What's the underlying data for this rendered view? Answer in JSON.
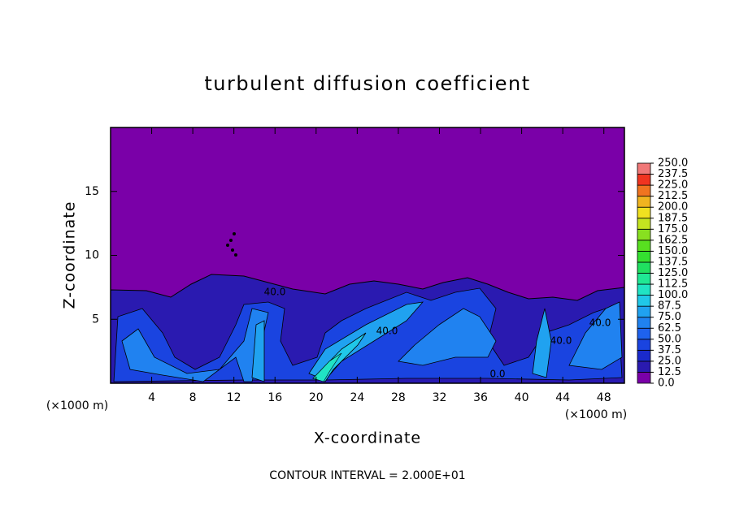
{
  "chart_data": {
    "type": "contour",
    "title": "turbulent diffusion coefficient",
    "xlabel": "X-coordinate",
    "ylabel": "Z-coordinate",
    "x_unit": "(×1000 m)",
    "y_unit": "(×1000 m)",
    "note": "CONTOUR INTERVAL = 2.000E+01",
    "xlim": [
      0,
      50
    ],
    "ylim": [
      0,
      20
    ],
    "xticks": [
      4,
      8,
      12,
      16,
      20,
      24,
      28,
      32,
      36,
      40,
      44,
      48
    ],
    "yticks": [
      5,
      10,
      15
    ],
    "levels": [
      {
        "value": 0,
        "label": "0.0"
      },
      {
        "value": 12.5,
        "label": "12.5"
      },
      {
        "value": 25,
        "label": "25.0"
      },
      {
        "value": 37.5,
        "label": "37.5"
      },
      {
        "value": 50,
        "label": "50.0"
      },
      {
        "value": 62.5,
        "label": "62.5"
      },
      {
        "value": 75,
        "label": "75.0"
      },
      {
        "value": 87.5,
        "label": "87.5"
      },
      {
        "value": 100,
        "label": "100.0"
      },
      {
        "value": 112.5,
        "label": "112.5"
      },
      {
        "value": 125,
        "label": "125.0"
      },
      {
        "value": 137.5,
        "label": "137.5"
      },
      {
        "value": 150,
        "label": "150.0"
      },
      {
        "value": 162.5,
        "label": "162.5"
      },
      {
        "value": 175,
        "label": "175.0"
      },
      {
        "value": 187.5,
        "label": "187.5"
      },
      {
        "value": 200,
        "label": "200.0"
      },
      {
        "value": 212.5,
        "label": "212.5"
      },
      {
        "value": 225,
        "label": "225.0"
      },
      {
        "value": 237.5,
        "label": "237.5"
      },
      {
        "value": 250,
        "label": "250.0"
      }
    ],
    "colors": [
      "#7a00a8",
      "#2a1ab0",
      "#1a2acc",
      "#1a44e0",
      "#1e62ee",
      "#2082f0",
      "#20a2f0",
      "#20c8e8",
      "#20e4c4",
      "#20e894",
      "#20e060",
      "#34e030",
      "#58e020",
      "#88e020",
      "#c4e420",
      "#f0e020",
      "#f0b420",
      "#f07420",
      "#f03420",
      "#f07878"
    ],
    "contour_labels": [
      "40.0",
      "40.0",
      "40.0",
      "40.0",
      "0.0"
    ]
  }
}
